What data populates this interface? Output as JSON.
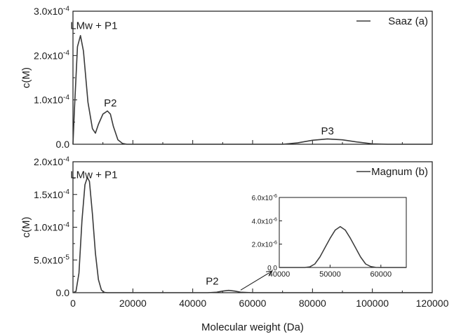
{
  "chart_data": [
    {
      "type": "line",
      "panel": "a",
      "ylabel": "c(M)",
      "xlim": [
        0,
        120000
      ],
      "ylim": [
        0,
        0.0003
      ],
      "yticks": [
        "0.0",
        "1.0x10-4",
        "2.0x10-4",
        "3.0x10-4"
      ],
      "legend": {
        "label": "Saaz (a)",
        "placement": "top-right"
      },
      "annotations": [
        {
          "text": "LMw + P1",
          "x": 7000,
          "y": 0.00026
        },
        {
          "text": "P2",
          "x": 12500,
          "y": 8.5e-05
        },
        {
          "text": "P3",
          "x": 85000,
          "y": 2.2e-05
        }
      ],
      "series": [
        {
          "name": "Saaz (a)",
          "x": [
            0,
            500,
            1500,
            2500,
            3500,
            5000,
            6500,
            7500,
            8500,
            10000,
            11500,
            12500,
            13500,
            15000,
            16500,
            18000,
            20000,
            30000,
            50000,
            70000,
            75000,
            80000,
            85000,
            90000,
            95000,
            100000,
            105000,
            120000
          ],
          "y": [
            0,
            8e-05,
            0.00022,
            0.000245,
            0.00021,
            9.5e-05,
            3.5e-05,
            2.5e-05,
            4.5e-05,
            6.8e-05,
            7.5e-05,
            6.8e-05,
            4e-05,
            1e-05,
            2e-06,
            0,
            0,
            0,
            0,
            0,
            3e-06,
            9e-06,
            1.2e-05,
            1e-05,
            5e-06,
            1e-06,
            0,
            0
          ]
        }
      ]
    },
    {
      "type": "line",
      "panel": "b",
      "xlabel": "Molecular weight (Da)",
      "ylabel": "c(M)",
      "xlim": [
        0,
        120000
      ],
      "ylim": [
        0,
        0.0002
      ],
      "xticks": [
        "0",
        "20000",
        "40000",
        "60000",
        "80000",
        "100000",
        "120000"
      ],
      "yticks": [
        "0.0",
        "5.0x10-5",
        "1.0x10-4",
        "1.5x10-4",
        "2.0x10-4"
      ],
      "legend": {
        "label": "Magnum (b)",
        "placement": "top-right"
      },
      "annotations": [
        {
          "text": "LMw + P1",
          "x": 7000,
          "y": 0.000175
        },
        {
          "text": "P2",
          "x": 46500,
          "y": 1.25e-05
        }
      ],
      "series": [
        {
          "name": "Magnum (b)",
          "x": [
            0,
            1000,
            2000,
            3000,
            4000,
            4800,
            5500,
            6500,
            7500,
            8500,
            9500,
            10500,
            11500,
            45000,
            48000,
            50000,
            52000,
            54000,
            56000,
            60000,
            120000
          ],
          "y": [
            0,
            2e-06,
            3e-05,
            0.00011,
            0.000165,
            0.000176,
            0.00017,
            0.00012,
            6e-05,
            2e-05,
            4e-06,
            5e-07,
            0,
            0,
            8e-07,
            2.5e-06,
            3.5e-06,
            2.5e-06,
            8e-07,
            0,
            0
          ]
        }
      ],
      "inset": {
        "xlim": [
          40000,
          65000
        ],
        "ylim": [
          0,
          6e-06
        ],
        "xticks": [
          "40000",
          "50000",
          "60000"
        ],
        "yticks": [
          "0.0",
          "2.0x10-6",
          "4.0x10-6",
          "6.0x10-6"
        ],
        "series": [
          {
            "x": [
              40000,
              45000,
              46000,
              47000,
              48000,
              49000,
              50000,
              51000,
              52000,
              53000,
              54000,
              55000,
              56000,
              57000,
              58000,
              59000,
              60000,
              65000
            ],
            "y": [
              0,
              0,
              5e-08,
              3e-07,
              9e-07,
              1.7e-06,
              2.5e-06,
              3.2e-06,
              3.5e-06,
              3.2e-06,
              2.5e-06,
              1.7e-06,
              9e-07,
              3e-07,
              8e-08,
              1e-08,
              0,
              0
            ]
          }
        ]
      }
    }
  ]
}
